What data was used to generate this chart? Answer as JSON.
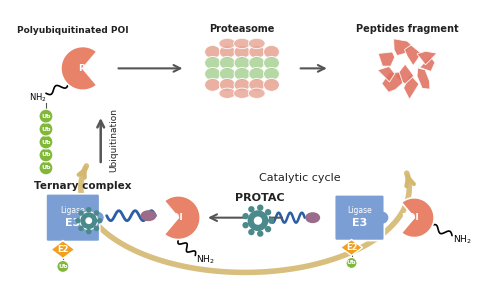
{
  "bg_color": "#ffffff",
  "colors": {
    "e3_ligase_body": "#7b9fd4",
    "e2_diamond": "#f0a020",
    "ub_green": "#82b83a",
    "poi_body": "#e8836a",
    "poi_oval": "#9b6b8a",
    "gear_teal": "#4a8a8c",
    "linker_blue": "#2a5fa5",
    "arrow_tan": "#d4b870",
    "arrow_dark": "#555555",
    "proteasome_green": "#aed49a",
    "proteasome_pink": "#e8a898",
    "peptides_pink": "#e07060",
    "text_dark": "#222222"
  },
  "layout": {
    "figw": 5.0,
    "figh": 2.96,
    "dpi": 100,
    "xlim": [
      0,
      500
    ],
    "ylim": [
      0,
      296
    ]
  }
}
